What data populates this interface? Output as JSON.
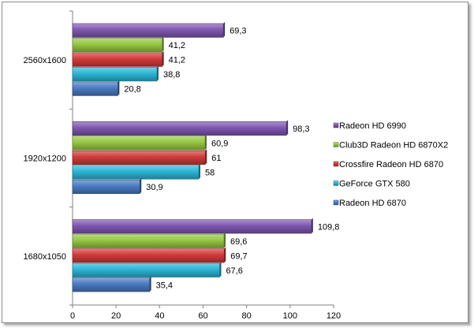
{
  "chart_data": {
    "type": "bar",
    "orientation": "horizontal",
    "title": "",
    "xlabel": "",
    "ylabel": "",
    "xlim": [
      0,
      120
    ],
    "x_ticks": [
      0,
      20,
      40,
      60,
      80,
      100,
      120
    ],
    "grid": false,
    "legend_position": "right",
    "categories": [
      "2560x1600",
      "1920x1200",
      "1680x1050"
    ],
    "series": [
      {
        "name": "Radeon HD 6990",
        "color": "#7f56b0",
        "values": [
          69.3,
          98.3,
          109.8
        ],
        "labels": [
          "69,3",
          "98,3",
          "109,8"
        ]
      },
      {
        "name": "Club3D Radeon HD 6870X2",
        "color": "#96c641",
        "values": [
          41.2,
          60.9,
          69.6
        ],
        "labels": [
          "41,2",
          "60,9",
          "69,6"
        ]
      },
      {
        "name": "Crossfire Radeon HD 6870",
        "color": "#d13a3a",
        "values": [
          41.2,
          61,
          69.7
        ],
        "labels": [
          "41,2",
          "61",
          "69,7"
        ]
      },
      {
        "name": "GeForce GTX 580",
        "color": "#2bb5d6",
        "values": [
          38.8,
          58,
          67.6
        ],
        "labels": [
          "38,8",
          "58",
          "67,6"
        ]
      },
      {
        "name": "Radeon HD 6870",
        "color": "#4a7ac2",
        "values": [
          20.8,
          30.9,
          35.4
        ],
        "labels": [
          "20,8",
          "30,9",
          "35,4"
        ]
      }
    ]
  }
}
